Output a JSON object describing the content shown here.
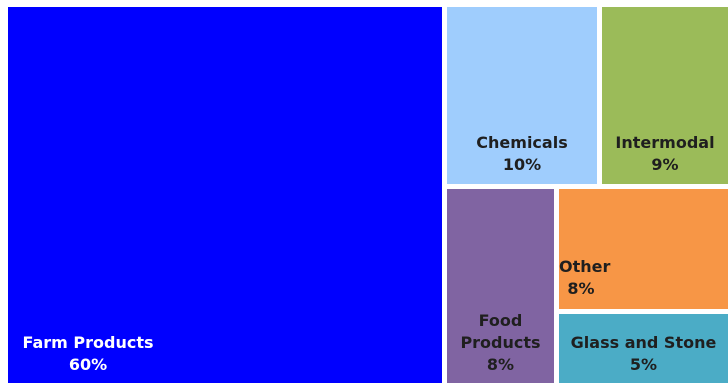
{
  "chart_data": {
    "type": "treemap",
    "title": "",
    "categories": [
      "Farm Products",
      "Chemicals",
      "Intermodal",
      "Food Products",
      "Other",
      "Glass and Stone"
    ],
    "values": [
      60,
      10,
      9,
      8,
      8,
      5
    ],
    "value_labels": [
      "60%",
      "10%",
      "9%",
      "8%",
      "8%",
      "5%"
    ],
    "name_labels": [
      "Farm Products",
      "Chemicals",
      "Intermodal",
      "Food\nProducts",
      "Other",
      "Glass and Stone"
    ],
    "colors": [
      "#0000ff",
      "#9fcdfd",
      "#9bbb59",
      "#8064a2",
      "#f79646",
      "#4bacc6"
    ],
    "text_colors": [
      "#ffffff",
      "#1f1f1f",
      "#1f1f1f",
      "#1f1f1f",
      "#1f1f1f",
      "#1f1f1f"
    ]
  }
}
